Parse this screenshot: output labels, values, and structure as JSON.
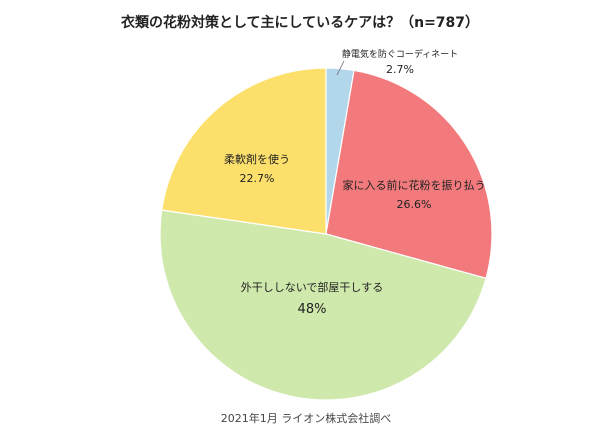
{
  "chart_data": {
    "type": "pie",
    "title": "衣類の花粉対策として主にしているケアは？（n=787）",
    "slices": [
      {
        "label": "静電気を防ぐコーディネート",
        "value": 2.7,
        "display": "2.7%",
        "color": "#b3d7ea"
      },
      {
        "label": "家に入る前に花粉を振り払う",
        "value": 26.6,
        "display": "26.6%",
        "color": "#f27a7c"
      },
      {
        "label": "外干ししないで部屋干しする",
        "value": 48.0,
        "display": "48%",
        "color": "#cfe8ab"
      },
      {
        "label": "柔軟剤を使う",
        "value": 22.7,
        "display": "22.7%",
        "color": "#fde06c"
      }
    ],
    "start_angle_deg": 0,
    "direction": "clockwise"
  },
  "footer": {
    "source": "2021年1月 ライオン株式会社調べ"
  }
}
